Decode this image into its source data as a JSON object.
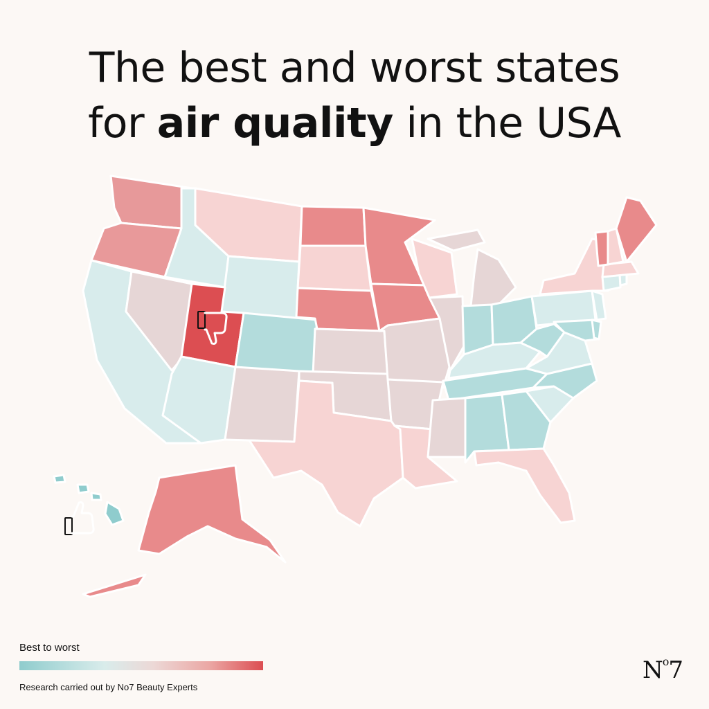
{
  "header": {
    "title_line1": "The best and worst states",
    "title_line2_prefix": "for",
    "title_line2_bold": "air quality",
    "title_line2_suffix": "in the USA"
  },
  "legend": {
    "label": "Best to worst",
    "colors": [
      "#8fcccd",
      "#d9eceb",
      "#ecd8d6",
      "#eba7a4",
      "#dc4e52"
    ]
  },
  "credit": "Research carried out by No7 Beauty Experts",
  "logo": {
    "text": "N",
    "sup": "o",
    "suffix": "7"
  },
  "icons": {
    "best": "thumbs-up-icon",
    "worst": "thumbs-down-icon"
  },
  "map_data": {
    "scale": "best to worst",
    "states": {
      "WA": "#e7999a",
      "OR": "#e8999a",
      "CA": "#d8ecec",
      "NV": "#e6d6d6",
      "ID": "#d8ecec",
      "MT": "#f7d4d3",
      "WY": "#d8ecec",
      "UT": "#dc4e52",
      "CO": "#b3dcdc",
      "AZ": "#d8ecec",
      "NM": "#e6d6d6",
      "ND": "#e88a8b",
      "SD": "#f7d4d3",
      "NE": "#e88a8b",
      "KS": "#e6d6d6",
      "OK": "#e6d6d6",
      "TX": "#f7d4d3",
      "MN": "#e88a8b",
      "IA": "#e88a8b",
      "MO": "#e6d6d6",
      "AR": "#e6d6d6",
      "LA": "#f7d4d3",
      "WI": "#f7d4d3",
      "IL": "#e6d6d6",
      "MI": "#e6d6d6",
      "IN": "#b3dcdc",
      "OH": "#b3dcdc",
      "KY": "#d8ecec",
      "TN": "#b3dcdc",
      "MS": "#e6d6d6",
      "AL": "#b3dcdc",
      "GA": "#b3dcdc",
      "FL": "#f7d4d3",
      "SC": "#d8ecec",
      "NC": "#b3dcdc",
      "VA": "#d8ecec",
      "WV": "#b3dcdc",
      "PA": "#d8ecec",
      "NY": "#f7d4d3",
      "VT": "#e88a8b",
      "NH": "#f7d4d3",
      "ME": "#e88a8b",
      "MA": "#f7d4d3",
      "CT": "#d8ecec",
      "RI": "#d8ecec",
      "NJ": "#d8ecec",
      "DE": "#b3dcdc",
      "MD": "#b3dcdc",
      "AK": "#e88a8b",
      "HI": "#8fcccd"
    }
  }
}
